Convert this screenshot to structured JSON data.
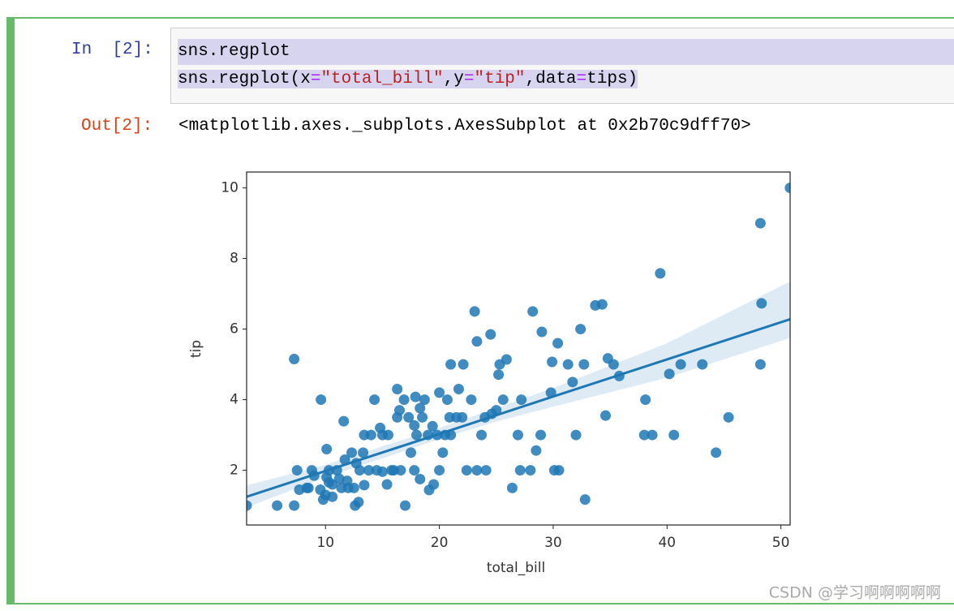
{
  "notebook": {
    "input_prompt": "In  [2]:",
    "input_lines": [
      [
        "sns.regplot"
      ],
      [
        "sns.regplot(x",
        "=",
        "\"total_bill\"",
        ",y",
        "=",
        "\"tip\"",
        ",data",
        "=",
        "tips)"
      ]
    ],
    "output_prompt": "Out[2]:",
    "output_text": "<matplotlib.axes._subplots.AxesSubplot at 0x2b70c9dff70>",
    "watermark": "CSDN @学习啊啊啊啊啊"
  },
  "chart_data": {
    "type": "scatter",
    "xlabel": "total_bill",
    "ylabel": "tip",
    "color": "#1f77b4",
    "xlim": [
      3.07,
      50.81
    ],
    "ylim": [
      0.45,
      10.45
    ],
    "xticks": [
      10,
      20,
      30,
      40,
      50
    ],
    "yticks": [
      2,
      4,
      6,
      8,
      10
    ],
    "x": [
      3.07,
      5.75,
      7.25,
      7.25,
      7.5,
      7.7,
      8.5,
      8.35,
      8.8,
      9.0,
      9.6,
      9.55,
      9.8,
      10.1,
      10.3,
      10.3,
      10.0,
      10.6,
      10.1,
      10.6,
      11.0,
      11.2,
      11.4,
      11.6,
      11.9,
      11.7,
      12.0,
      12.3,
      12.5,
      12.6,
      12.9,
      12.7,
      13.0,
      13.3,
      13.4,
      13.4,
      13.8,
      14.0,
      14.3,
      14.5,
      14.8,
      15.0,
      15.0,
      15.4,
      15.5,
      15.8,
      16.0,
      16.3,
      16.3,
      16.5,
      16.6,
      16.9,
      17.0,
      17.3,
      17.5,
      17.8,
      17.8,
      17.9,
      18.0,
      18.3,
      18.3,
      18.5,
      18.7,
      19.0,
      19.1,
      19.4,
      19.5,
      19.8,
      20.0,
      20.0,
      20.3,
      20.5,
      20.7,
      20.9,
      21.0,
      21.0,
      21.5,
      21.7,
      22.0,
      22.1,
      22.4,
      22.8,
      23.1,
      23.3,
      23.3,
      23.7,
      24.0,
      24.1,
      24.5,
      24.6,
      25.0,
      25.2,
      25.3,
      25.6,
      25.9,
      26.4,
      26.9,
      27.1,
      27.2,
      28.0,
      28.2,
      28.5,
      28.9,
      29.0,
      29.8,
      29.9,
      30.1,
      30.5,
      30.4,
      31.3,
      31.7,
      32.0,
      32.4,
      32.7,
      32.8,
      33.7,
      34.3,
      34.6,
      34.8,
      35.3,
      35.8,
      38.0,
      38.1,
      38.7,
      39.4,
      40.2,
      40.6,
      41.2,
      43.1,
      44.3,
      45.4,
      48.2,
      48.3,
      48.2,
      50.8
    ],
    "values": [
      1.0,
      1.0,
      1.0,
      5.15,
      2.0,
      1.45,
      1.5,
      1.5,
      2.0,
      1.85,
      4.0,
      1.45,
      1.17,
      1.8,
      1.66,
      2.0,
      1.3,
      1.6,
      2.6,
      1.25,
      2.0,
      1.76,
      1.5,
      3.39,
      1.7,
      2.3,
      1.5,
      2.5,
      1.5,
      1.0,
      1.1,
      2.2,
      2.0,
      2.5,
      3.0,
      1.58,
      2.0,
      3.0,
      4.0,
      2.0,
      3.2,
      1.96,
      3.0,
      1.6,
      3.0,
      2.0,
      2.0,
      3.5,
      4.3,
      3.7,
      2.0,
      4.0,
      1.0,
      3.5,
      2.5,
      3.27,
      2.0,
      4.08,
      3.0,
      1.75,
      3.76,
      3.5,
      4.0,
      3.0,
      1.44,
      3.25,
      1.6,
      3.0,
      4.2,
      2.0,
      2.5,
      3.0,
      4.0,
      3.5,
      3.0,
      5.0,
      3.5,
      4.3,
      3.5,
      5.0,
      2.0,
      4.0,
      6.5,
      5.65,
      2.0,
      3.0,
      3.5,
      2.0,
      5.85,
      3.6,
      3.7,
      4.71,
      5.0,
      4.0,
      5.14,
      1.5,
      3.0,
      2.0,
      4.0,
      2.0,
      6.5,
      2.56,
      3.0,
      5.92,
      4.2,
      5.07,
      2.0,
      2.0,
      5.6,
      5.0,
      4.5,
      3.0,
      6.0,
      5.0,
      1.17,
      6.67,
      6.7,
      3.55,
      5.17,
      5.0,
      4.67,
      3.0,
      4.0,
      3.0,
      7.58,
      4.73,
      3.0,
      5.0,
      5.0,
      2.5,
      3.5,
      9.0,
      6.73,
      5.0,
      10.0
    ],
    "fit": {
      "x": [
        3.07,
        10,
        20,
        25,
        30,
        40,
        50.81
      ],
      "values": [
        1.25,
        1.98,
        3.03,
        3.56,
        4.09,
        5.14,
        6.28
      ],
      "lower": [
        0.95,
        1.8,
        2.88,
        3.38,
        3.8,
        4.62,
        5.75
      ],
      "upper": [
        1.57,
        2.15,
        3.2,
        3.76,
        4.33,
        5.6,
        7.35
      ]
    }
  }
}
